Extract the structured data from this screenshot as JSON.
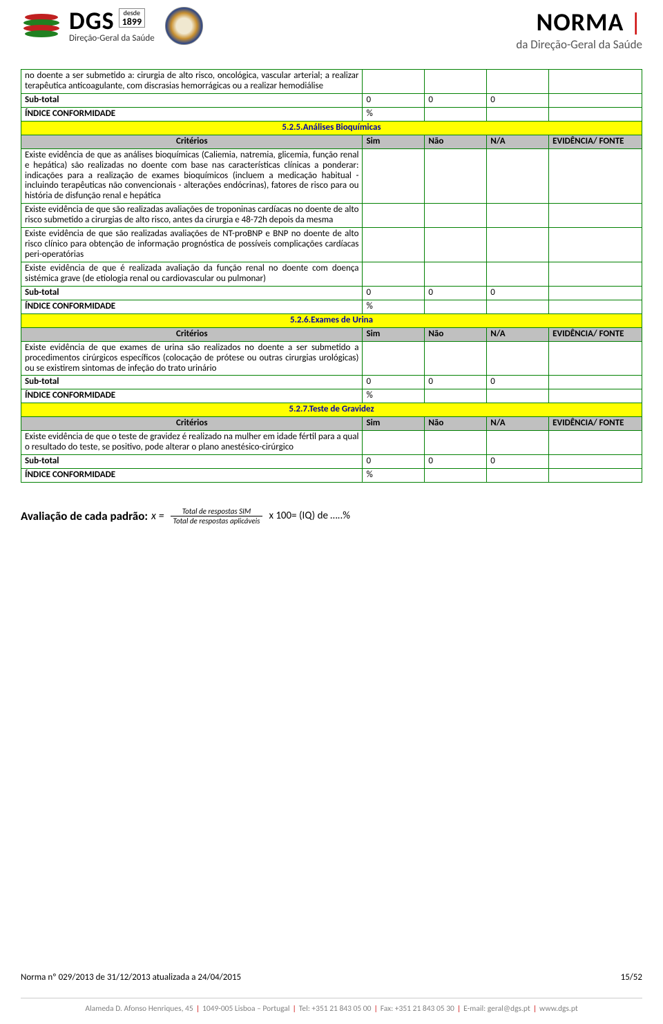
{
  "header": {
    "dgs_main": "DGS",
    "dgs_desde": "desde",
    "dgs_year": "1899",
    "dgs_sub": "Direção-Geral da Saúde",
    "norma_title": "NORMA",
    "norma_sub": "da Direção-Geral da Saúde"
  },
  "colors": {
    "border": "#008000",
    "yellow": "#ffff00",
    "header_gray": "#c0c0c0",
    "yellow_text": "#0000aa",
    "red": "#cc0000"
  },
  "columns": {
    "criterios": "Critérios",
    "sim": "Sim",
    "nao": "Não",
    "na": "N/A",
    "evidencia": "EVIDÊNCIA/ FONTE"
  },
  "labels": {
    "subtotal": "Sub-total",
    "indice": "ÍNDICE CONFORMIDADE",
    "zero": "0",
    "percent": "%"
  },
  "intro_row": "no doente a ser submetido a: cirurgia de alto risco, oncológica, vascular arterial; a realizar terapêutica anticoagulante, com discrasias hemorrágicas ou a realizar hemodiálise",
  "sections": [
    {
      "title": "5.2.5.Análises Bioquímicas",
      "rows": [
        "Existe evidência de que as análises bioquímicas (Caliemia, natremia, glicemia, função renal e hepática) são realizadas no doente com base nas características clínicas a ponderar: indicações para a realização de exames bioquímicos (incluem a medicação habitual - incluindo terapêuticas não convencionais - alterações endócrinas), fatores de risco para ou história de disfunção renal e hepática",
        "Existe evidência de que são realizadas avaliações de troponinas cardíacas no doente de alto risco submetido a cirurgias de alto risco, antes da cirurgia e 48-72h depois da mesma",
        "Existe evidência de que são realizadas avaliações de NT-proBNP e BNP no doente de alto risco clínico para obtenção de informação prognóstica de possíveis complicações cardíacas peri-operatórias",
        "Existe evidência de que é realizada avaliação da função renal no doente com doença sistémica grave (de etiologia renal ou cardiovascular ou pulmonar)"
      ]
    },
    {
      "title": "5.2.6.Exames de Urina",
      "rows": [
        "Existe evidência de que exames de urina são realizados no doente a ser submetido a procedimentos cirúrgicos específicos (colocação de prótese ou outras cirurgias urológicas) ou se existirem sintomas de infeção do trato urinário"
      ]
    },
    {
      "title": "5.2.7.Teste de Gravidez",
      "rows": [
        "Existe evidência de que o teste de gravidez é realizado na mulher em idade fértil para a qual o resultado do teste, se positivo, pode alterar o plano anestésico-cirúrgico"
      ]
    }
  ],
  "formula": {
    "label": "Avaliação de cada padrão:",
    "x_eq": "x =",
    "numerator": "Total de respostas SIM",
    "denominator": "Total de respostas aplicáveis",
    "rest": "x 100= (IQ) de …..%"
  },
  "footer": {
    "left": "Norma nº 029/2013 de 31/12/2013 atualizada a 24/04/2015",
    "right": "15/52",
    "address_parts": [
      "Alameda D. Afonso Henriques, 45",
      "1049-005 Lisboa – Portugal",
      "Tel: +351 21 843 05 00",
      "Fax: +351 21 843 05 30",
      "E-mail: geral@dgs.pt",
      "www.dgs.pt"
    ]
  }
}
